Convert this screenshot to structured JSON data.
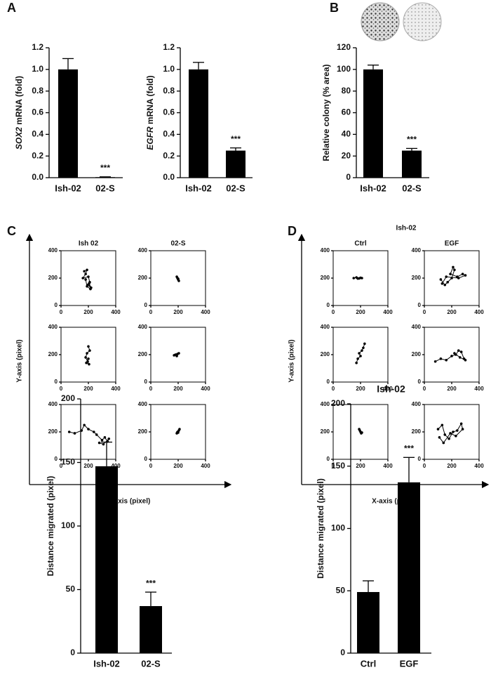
{
  "chart_data": [
    {
      "type": "bar",
      "panel_label": "A",
      "ylabel_gene": "SOX2",
      "ylabel": "mRNA (fold)",
      "categories": [
        "Ish-02",
        "02-S"
      ],
      "values": [
        1.0,
        0.005
      ],
      "errors": [
        0.1,
        0.003
      ],
      "annotation": "***",
      "color": "#000000",
      "ylim": [
        0,
        1.2
      ],
      "yticks": [
        {
          "value": 0,
          "label": "0.0"
        },
        0.2,
        0.4,
        0.6,
        0.8,
        {
          "value": 1,
          "label": "1.0"
        },
        1.2
      ]
    },
    {
      "type": "bar",
      "ylabel_gene": "EGFR",
      "ylabel": "mRNA (fold)",
      "categories": [
        "Ish-02",
        "02-S"
      ],
      "values": [
        1.0,
        0.25
      ],
      "errors": [
        0.065,
        0.025
      ],
      "annotation": "***",
      "color": "#000000",
      "ylim": [
        0,
        1.2
      ],
      "yticks": [
        {
          "value": 0,
          "label": "0.0"
        },
        0.2,
        0.4,
        0.6,
        0.8,
        {
          "value": 1,
          "label": "1.0"
        },
        1.2
      ]
    },
    {
      "type": "bar",
      "panel_label": "B",
      "ylabel": "Relative colony (% area)",
      "categories": [
        "Ish-02",
        "02-S"
      ],
      "values": [
        100,
        25
      ],
      "errors": [
        4,
        2
      ],
      "annotation": "***",
      "color": "#000000",
      "ylim": [
        0,
        120
      ],
      "yticks": [
        0,
        20,
        40,
        60,
        80,
        100,
        120
      ]
    },
    {
      "type": "trajectory",
      "panel_label": "C",
      "columns": [
        "Ish 02",
        "02-S"
      ],
      "xlabel": "X-axis (pixel)",
      "ylabel": "Y-axis (pixel)",
      "xlim": [
        0,
        400
      ],
      "ylim": [
        0,
        400
      ],
      "xticks": [
        0,
        200,
        400
      ],
      "yticks": [
        0,
        200,
        400
      ],
      "plots": [
        {
          "x": [
            170,
            190,
            180,
            160,
            200,
            210,
            195,
            220,
            205,
            215,
            190,
            180
          ],
          "y": [
            250,
            260,
            230,
            200,
            210,
            170,
            150,
            130,
            160,
            120,
            140,
            190
          ]
        },
        {
          "x": [
            190,
            195,
            200,
            205,
            200
          ],
          "y": [
            210,
            200,
            190,
            180,
            195
          ]
        },
        {
          "x": [
            200,
            210,
            190,
            180,
            195,
            205,
            185,
            200
          ],
          "y": [
            260,
            230,
            210,
            180,
            150,
            130,
            140,
            170
          ]
        },
        {
          "x": [
            170,
            180,
            195,
            205,
            190,
            185
          ],
          "y": [
            195,
            200,
            205,
            210,
            190,
            200
          ]
        },
        {
          "x": [
            60,
            100,
            150,
            170,
            200,
            240,
            260,
            300,
            320,
            340,
            350,
            310,
            280
          ],
          "y": [
            200,
            190,
            210,
            250,
            220,
            200,
            180,
            140,
            160,
            130,
            150,
            110,
            120
          ]
        },
        {
          "x": [
            190,
            195,
            200,
            205,
            210
          ],
          "y": [
            190,
            200,
            195,
            210,
            220
          ]
        }
      ]
    },
    {
      "type": "trajectory",
      "panel_label": "D",
      "title": "Ish-02",
      "columns": [
        "Ctrl",
        "EGF"
      ],
      "xlabel": "X-axis (pixel)",
      "ylabel": "Y-axis (pixel)",
      "xlim": [
        0,
        400
      ],
      "ylim": [
        0,
        400
      ],
      "xticks": [
        0,
        200,
        400
      ],
      "yticks": [
        0,
        200,
        400
      ],
      "plots": [
        {
          "x": [
            150,
            170,
            190,
            210,
            200,
            180
          ],
          "y": [
            200,
            205,
            198,
            200,
            202,
            197
          ]
        },
        {
          "x": [
            120,
            150,
            170,
            200,
            220,
            210,
            190,
            240,
            280,
            300,
            250,
            160,
            130
          ],
          "y": [
            190,
            150,
            170,
            200,
            260,
            280,
            230,
            210,
            230,
            220,
            200,
            210,
            160
          ]
        },
        {
          "x": [
            170,
            180,
            200,
            190,
            210,
            220,
            230
          ],
          "y": [
            140,
            170,
            190,
            210,
            230,
            250,
            280
          ]
        },
        {
          "x": [
            80,
            120,
            160,
            200,
            230,
            250,
            270,
            290,
            300,
            260,
            220
          ],
          "y": [
            150,
            170,
            160,
            190,
            200,
            230,
            220,
            170,
            160,
            180,
            210
          ]
        },
        {
          "x": [
            190,
            200,
            205,
            195,
            210
          ],
          "y": [
            220,
            200,
            190,
            210,
            195
          ]
        },
        {
          "x": [
            100,
            130,
            150,
            180,
            210,
            240,
            270,
            280,
            230,
            190,
            140,
            110
          ],
          "y": [
            220,
            250,
            180,
            150,
            200,
            210,
            260,
            220,
            170,
            190,
            120,
            160
          ]
        }
      ]
    },
    {
      "type": "bar",
      "ylabel": "Distance migrated (pixel)",
      "categories": [
        "Ish-02",
        "02-S"
      ],
      "values": [
        147,
        37
      ],
      "errors": [
        19,
        11
      ],
      "annotation": "***",
      "color": "#000000",
      "ylim": [
        0,
        200
      ],
      "yticks": [
        0,
        50,
        100,
        150,
        200
      ]
    },
    {
      "type": "bar",
      "title": "Ish-02",
      "ylabel": "Distance migrated (pixel)",
      "categories": [
        "Ctrl",
        "EGF"
      ],
      "values": [
        49,
        137
      ],
      "errors": [
        9,
        20
      ],
      "annotation": "***",
      "color": "#000000",
      "ylim": [
        0,
        200
      ],
      "yticks": [
        0,
        50,
        100,
        150,
        200
      ]
    }
  ]
}
